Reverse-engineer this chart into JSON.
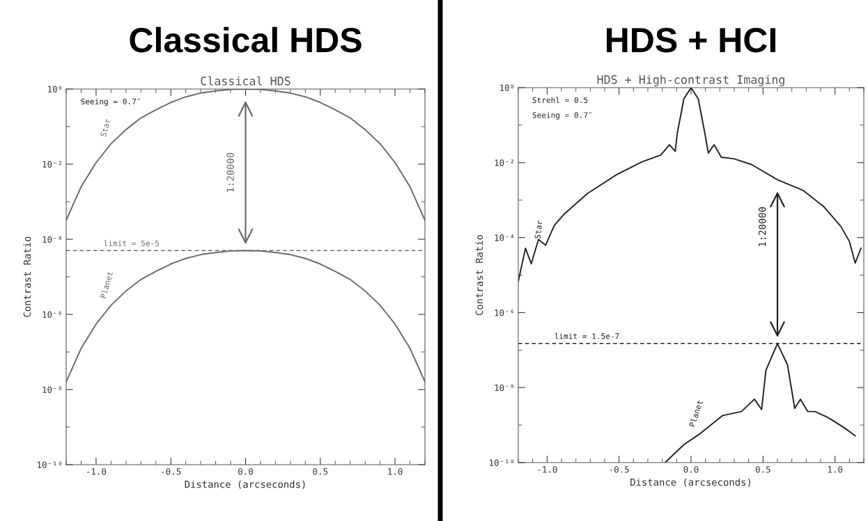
{
  "chart_data": [
    {
      "type": "line",
      "title": "Classical HDS",
      "subtitle": "Classical HDS",
      "xlabel": "Distance (arcseconds)",
      "ylabel": "Contrast Ratio",
      "log": "y",
      "xlim": [
        -1.2,
        1.2
      ],
      "xticks": [
        {
          "value": -1.0,
          "label": "-1.0"
        },
        {
          "value": -0.5,
          "label": "-0.5"
        },
        {
          "value": 0.0,
          "label": "0.0"
        },
        {
          "value": 0.5,
          "label": "0.5"
        },
        {
          "value": 1.0,
          "label": "1.0"
        }
      ],
      "ylim": [
        1e-10,
        1
      ],
      "yticks": [
        {
          "value": 1e-10,
          "label": "10⁻¹⁰"
        },
        {
          "value": 1e-08,
          "label": "10⁻⁸"
        },
        {
          "value": 1e-06,
          "label": "10⁻⁶"
        },
        {
          "value": 0.0001,
          "label": "10⁻⁴"
        },
        {
          "value": 0.01,
          "label": "10⁻²"
        },
        {
          "value": 1,
          "label": "10⁰"
        }
      ],
      "line_style": "solid",
      "marker": "none",
      "x": [
        -1.2,
        -1.1,
        -1.0,
        -0.9,
        -0.8,
        -0.7,
        -0.6,
        -0.5,
        -0.4,
        -0.3,
        -0.2,
        -0.1,
        0.0,
        0.1,
        0.2,
        0.3,
        0.4,
        0.5,
        0.6,
        0.7,
        0.8,
        0.9,
        1.0,
        1.1,
        1.2
      ],
      "series": [
        {
          "name": "Star",
          "color": "#6a6a6a",
          "values": [
            0.00032,
            0.0025,
            0.011,
            0.035,
            0.083,
            0.17,
            0.28,
            0.44,
            0.62,
            0.78,
            0.89,
            0.98,
            1,
            0.98,
            0.89,
            0.78,
            0.62,
            0.44,
            0.28,
            0.17,
            0.083,
            0.035,
            0.011,
            0.0025,
            0.00032
          ]
        },
        {
          "name": "Planet",
          "color": "#6a6a6a",
          "values": [
            1.6e-08,
            1.25e-07,
            5.5e-07,
            1.75e-06,
            4.2e-06,
            8.5e-06,
            1.4e-05,
            2.2e-05,
            3.1e-05,
            3.9e-05,
            4.45e-05,
            4.9e-05,
            5e-05,
            4.9e-05,
            4.45e-05,
            3.9e-05,
            3.1e-05,
            2.2e-05,
            1.4e-05,
            8.5e-06,
            4.2e-06,
            1.75e-06,
            5.5e-07,
            1.25e-07,
            1.6e-08
          ]
        }
      ],
      "ref_lines": [
        {
          "axis": "y",
          "value": 5e-05,
          "color": "#6a6a6a",
          "line_style": "dashed"
        }
      ],
      "annotations": [
        "Seeing = 0.7″",
        {
          "text": "limit = 5e-5",
          "x": -0.95,
          "y": 5e-05
        },
        "1:20000"
      ]
    },
    {
      "type": "line",
      "title": "HDS + HCI",
      "subtitle": "HDS + High-contrast Imaging",
      "xlabel": "Distance (arcseconds)",
      "ylabel": "Contrast Ratio",
      "log": "y",
      "xlim": [
        -1.2,
        1.2
      ],
      "xticks": [
        {
          "value": -1.0,
          "label": "-1.0"
        },
        -0.5,
        {
          "value": 0.0,
          "label": "0.0"
        },
        0.5,
        {
          "value": 1.0,
          "label": "1.0"
        }
      ],
      "ylim": [
        1e-10,
        1
      ],
      "yticks": [
        {
          "value": 1e-10,
          "label": "10⁻¹⁰"
        },
        {
          "value": 1e-08,
          "label": "10⁻⁸"
        },
        {
          "value": 1e-06,
          "label": "10⁻⁶"
        },
        {
          "value": 0.0001,
          "label": "10⁻⁴"
        },
        {
          "value": 0.01,
          "label": "10⁻²"
        },
        {
          "value": 1,
          "label": "10⁰"
        }
      ],
      "line_style": "solid",
      "marker": "none",
      "series": [
        {
          "name": "Star",
          "color": "#222222",
          "x": [
            -1.2,
            -1.15,
            -1.11,
            -1.06,
            -1.01,
            -0.95,
            -0.88,
            -0.72,
            -0.52,
            -0.34,
            -0.21,
            -0.15,
            -0.11,
            -0.095,
            -0.05,
            0.0,
            0.05,
            0.095,
            0.12,
            0.16,
            0.21,
            0.3,
            0.42,
            0.6,
            0.78,
            0.92,
            1.04,
            1.1,
            1.14,
            1.18
          ],
          "values": [
            6.8e-06,
            5.2e-05,
            2e-05,
            8.9e-05,
            6.3e-05,
            0.00021,
            0.00043,
            0.0015,
            0.0047,
            0.0105,
            0.016,
            0.03,
            0.02,
            0.063,
            0.5,
            1,
            0.5,
            0.063,
            0.018,
            0.03,
            0.014,
            0.0126,
            0.0089,
            0.0035,
            0.0018,
            0.00068,
            0.0002,
            7.9e-05,
            2.1e-05,
            5.2e-05
          ]
        },
        {
          "name": "Planet",
          "color": "#222222",
          "x": [
            -0.18,
            -0.05,
            0.06,
            0.22,
            0.35,
            0.44,
            0.49,
            0.52,
            0.6,
            0.67,
            0.72,
            0.76,
            0.81,
            0.86,
            0.95,
            1.06,
            1.14
          ],
          "values": [
            1e-10,
            3e-10,
            5.8e-10,
            1.8e-09,
            2.3e-09,
            4.9e-09,
            2.6e-09,
            2.9e-08,
            1.5e-07,
            4e-08,
            2.8e-09,
            4.9e-09,
            2.3e-09,
            2.3e-09,
            1.6e-09,
            8.7e-10,
            5.2e-10
          ]
        }
      ],
      "ref_lines": [
        {
          "axis": "y",
          "value": 1.5e-07,
          "color": "#222222",
          "line_style": "dashed"
        }
      ],
      "annotations": [
        "Strehl = 0.5",
        "Seeing = 0.7″",
        {
          "text": "limit = 1.5e-7",
          "x": -0.95,
          "y": 1.5e-07
        },
        "1:20000"
      ]
    }
  ]
}
